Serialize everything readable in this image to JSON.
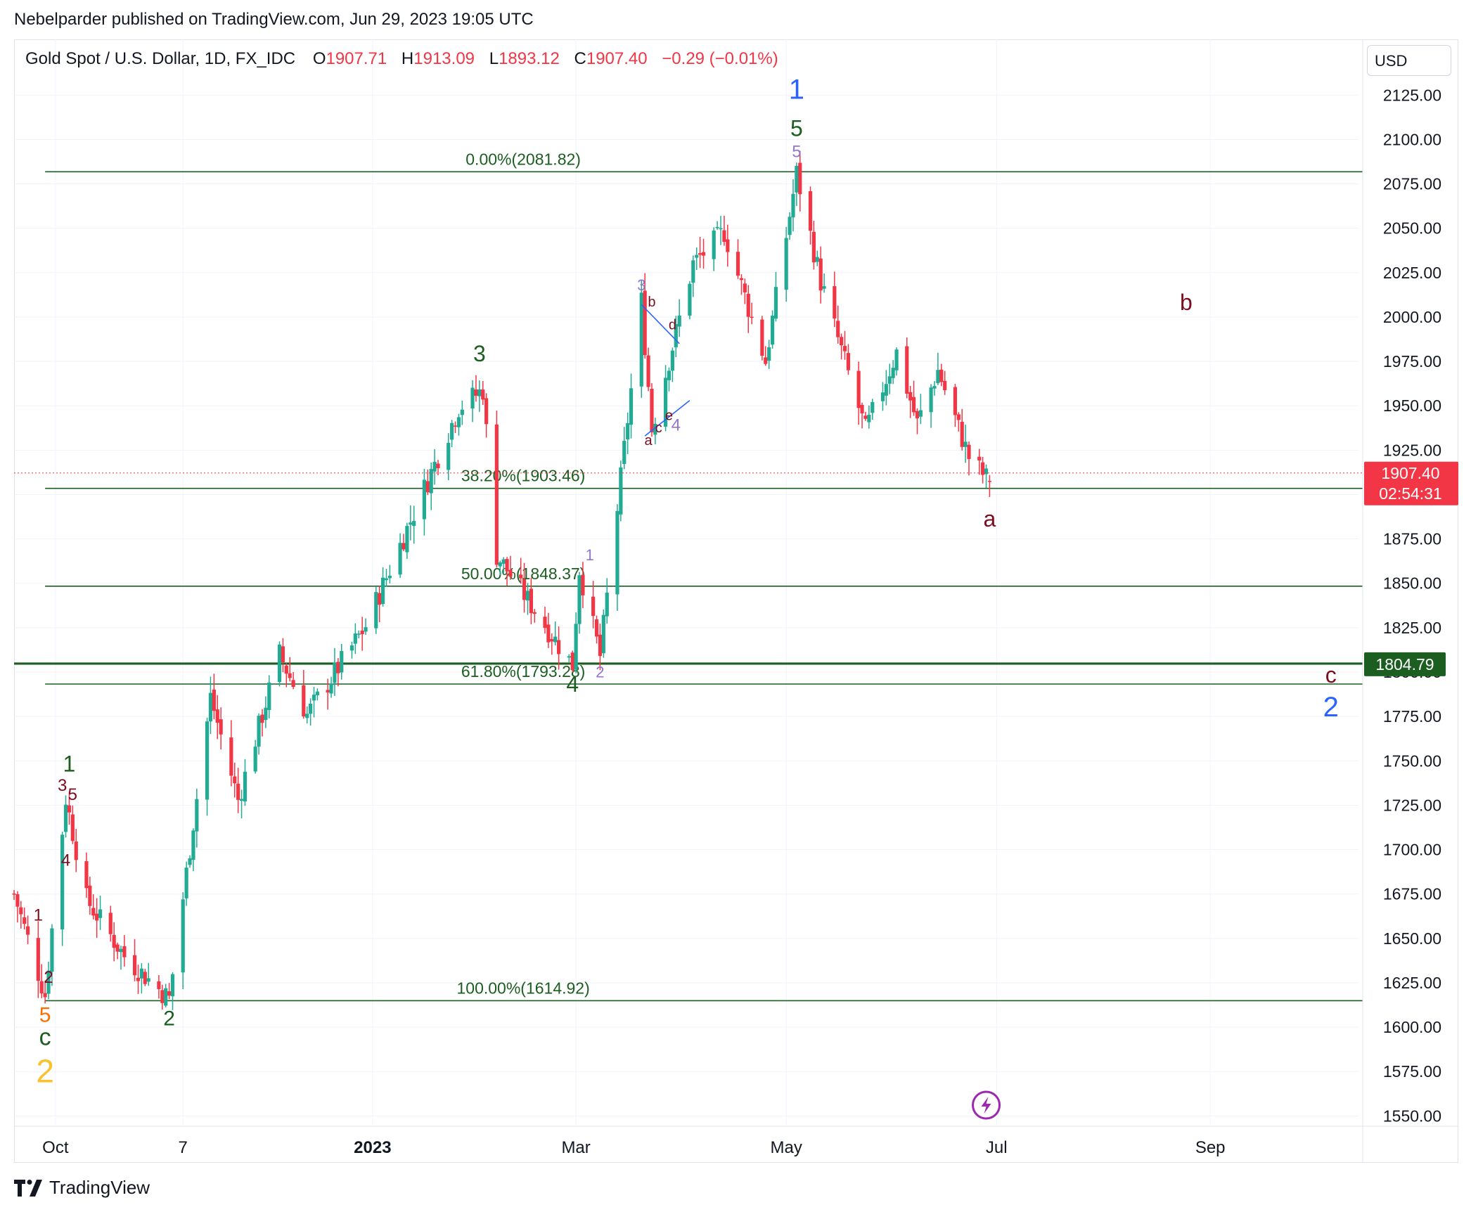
{
  "publisher_line": "Nebelparder published on TradingView.com, Jun 29, 2023 19:05 UTC",
  "header": {
    "symbol": "Gold Spot / U.S. Dollar, 1D, FX_IDC",
    "open_label": "O",
    "open": "1907.71",
    "high_label": "H",
    "high": "1913.09",
    "low_label": "L",
    "low": "1893.12",
    "close_label": "C",
    "close": "1907.40",
    "change": "−0.29 (−0.01%)"
  },
  "currency": "USD",
  "footer": {
    "brand": "TradingView"
  },
  "colors": {
    "up": "#22ab94",
    "down": "#f23645",
    "fib": "#1b5e20",
    "wave_blue": "#2962ff",
    "wave_purple": "#9575cd",
    "wave_maroon": "#7b0d1e",
    "wave_orange": "#ff6d00",
    "wave_yellow": "#fbc02d"
  },
  "chart_data": {
    "type": "candlestick",
    "title": "Gold Spot / U.S. Dollar, 1D, FX_IDC",
    "ylim": [
      1545,
      2135
    ],
    "y_ticks": [
      "1550.00",
      "1575.00",
      "1600.00",
      "1625.00",
      "1650.00",
      "1675.00",
      "1700.00",
      "1725.00",
      "1750.00",
      "1775.00",
      "1800.00",
      "1825.00",
      "1850.00",
      "1875.00",
      "1900.00",
      "1925.00",
      "1950.00",
      "1975.00",
      "2000.00",
      "2025.00",
      "2050.00",
      "2075.00",
      "2100.00",
      "2125.00"
    ],
    "x_ticks": [
      {
        "label": "Oct",
        "date": "2022-10-01",
        "bold": false
      },
      {
        "label": "7",
        "date": "2022-11-07",
        "bold": false
      },
      {
        "label": "2023",
        "date": "2023-01-01",
        "bold": true
      },
      {
        "label": "Mar",
        "date": "2023-03-01",
        "bold": false
      },
      {
        "label": "May",
        "date": "2023-05-01",
        "bold": false
      },
      {
        "label": "Jul",
        "date": "2023-07-01",
        "bold": false
      },
      {
        "label": "Sep",
        "date": "2023-09-01",
        "bold": false
      }
    ],
    "x_range": [
      "2022-09-19",
      "2023-10-14"
    ],
    "price_label": {
      "value": "1907.40",
      "countdown": "02:54:31"
    },
    "level_label": {
      "value": "1804.79"
    },
    "fib_levels": [
      {
        "label": "0.00%(2081.82)",
        "price": 2081.82
      },
      {
        "label": "38.20%(1903.46)",
        "price": 1903.46
      },
      {
        "label": "50.00%(1848.37)",
        "price": 1848.37
      },
      {
        "label": "61.80%(1793.28)",
        "price": 1793.28
      },
      {
        "label": "100.00%(1614.92)",
        "price": 1614.92
      }
    ],
    "waypoints": [
      {
        "date": "2022-09-19",
        "price": 1675
      },
      {
        "date": "2022-09-28",
        "price": 1618
      },
      {
        "date": "2022-10-04",
        "price": 1729
      },
      {
        "date": "2022-10-10",
        "price": 1672
      },
      {
        "date": "2022-10-21",
        "price": 1640
      },
      {
        "date": "2022-11-03",
        "price": 1616
      },
      {
        "date": "2022-11-15",
        "price": 1786
      },
      {
        "date": "2022-11-23",
        "price": 1728
      },
      {
        "date": "2022-12-05",
        "price": 1810
      },
      {
        "date": "2022-12-13",
        "price": 1776
      },
      {
        "date": "2022-12-30",
        "price": 1826
      },
      {
        "date": "2023-01-26",
        "price": 1949
      },
      {
        "date": "2023-02-02",
        "price": 1959
      },
      {
        "date": "2023-02-06",
        "price": 1866
      },
      {
        "date": "2023-02-28",
        "price": 1804
      },
      {
        "date": "2023-03-02",
        "price": 1858
      },
      {
        "date": "2023-03-08",
        "price": 1809
      },
      {
        "date": "2023-03-20",
        "price": 2009
      },
      {
        "date": "2023-03-23",
        "price": 1937
      },
      {
        "date": "2023-04-04",
        "price": 2030
      },
      {
        "date": "2023-04-13",
        "price": 2048
      },
      {
        "date": "2023-04-25",
        "price": 1975
      },
      {
        "date": "2023-05-04",
        "price": 2081
      },
      {
        "date": "2023-05-11",
        "price": 2020
      },
      {
        "date": "2023-05-24",
        "price": 1936
      },
      {
        "date": "2023-06-02",
        "price": 1980
      },
      {
        "date": "2023-06-08",
        "price": 1940
      },
      {
        "date": "2023-06-14",
        "price": 1970
      },
      {
        "date": "2023-06-23",
        "price": 1921
      },
      {
        "date": "2023-06-29",
        "price": 1907
      }
    ],
    "annotations": [
      {
        "text": "1",
        "date": "2023-05-04",
        "price": 2123,
        "color": "#2962ff",
        "size": 40
      },
      {
        "text": "5",
        "date": "2023-05-04",
        "price": 2102,
        "color": "#1b5e20",
        "size": 32
      },
      {
        "text": "5",
        "date": "2023-05-04",
        "price": 2090,
        "color": "#9575cd",
        "size": 24
      },
      {
        "text": "3",
        "date": "2023-02-01",
        "price": 1975,
        "color": "#1b5e20",
        "size": 32
      },
      {
        "text": "3",
        "date": "2023-03-20",
        "price": 2015,
        "color": "#9575cd",
        "size": 22
      },
      {
        "text": "b",
        "date": "2023-03-23",
        "price": 2006,
        "color": "#7b0d1e",
        "size": 20
      },
      {
        "text": "d",
        "date": "2023-03-29",
        "price": 1993,
        "color": "#7b0d1e",
        "size": 20
      },
      {
        "text": "a",
        "date": "2023-03-22",
        "price": 1928,
        "color": "#7b0d1e",
        "size": 20
      },
      {
        "text": "c",
        "date": "2023-03-25",
        "price": 1935,
        "color": "#7b0d1e",
        "size": 20
      },
      {
        "text": "e",
        "date": "2023-03-28",
        "price": 1942,
        "color": "#7b0d1e",
        "size": 20
      },
      {
        "text": "4",
        "date": "2023-03-30",
        "price": 1936,
        "color": "#9575cd",
        "size": 24
      },
      {
        "text": "1",
        "date": "2023-03-05",
        "price": 1863,
        "color": "#9575cd",
        "size": 22
      },
      {
        "text": "2",
        "date": "2023-03-08",
        "price": 1797,
        "color": "#9575cd",
        "size": 22
      },
      {
        "text": "4",
        "date": "2023-02-28",
        "price": 1789,
        "color": "#1b5e20",
        "size": 32
      },
      {
        "text": "b",
        "date": "2023-08-25",
        "price": 2004,
        "color": "#7b0d1e",
        "size": 32
      },
      {
        "text": "a",
        "date": "2023-06-29",
        "price": 1882,
        "color": "#7b0d1e",
        "size": 32
      },
      {
        "text": "c",
        "date": "2023-10-06",
        "price": 1794,
        "color": "#7b0d1e",
        "size": 32
      },
      {
        "text": "2",
        "date": "2023-10-06",
        "price": 1775,
        "color": "#2962ff",
        "size": 40
      },
      {
        "text": "1",
        "date": "2022-10-05",
        "price": 1744,
        "color": "#1b5e20",
        "size": 32
      },
      {
        "text": "3",
        "date": "2022-10-03",
        "price": 1733,
        "color": "#7b0d1e",
        "size": 24
      },
      {
        "text": "5",
        "date": "2022-10-06",
        "price": 1728,
        "color": "#7b0d1e",
        "size": 24
      },
      {
        "text": "4",
        "date": "2022-10-04",
        "price": 1691,
        "color": "#7b0d1e",
        "size": 24
      },
      {
        "text": "1",
        "date": "2022-09-26",
        "price": 1660,
        "color": "#7b0d1e",
        "size": 24
      },
      {
        "text": "2",
        "date": "2022-09-29",
        "price": 1625,
        "color": "#7b0d1e",
        "size": 24
      },
      {
        "text": "5",
        "date": "2022-09-28",
        "price": 1603,
        "color": "#ff6d00",
        "size": 30
      },
      {
        "text": "c",
        "date": "2022-09-28",
        "price": 1590,
        "color": "#1b5e20",
        "size": 34
      },
      {
        "text": "2",
        "date": "2022-09-28",
        "price": 1569,
        "color": "#fbc02d",
        "size": 46
      },
      {
        "text": "2",
        "date": "2022-11-03",
        "price": 1601,
        "color": "#1b5e20",
        "size": 30
      }
    ],
    "trendlines": [
      {
        "from": {
          "date": "2023-03-20",
          "price": 2007
        },
        "to": {
          "date": "2023-03-31",
          "price": 1985
        },
        "color": "#2962ff"
      },
      {
        "from": {
          "date": "2023-03-21",
          "price": 1933
        },
        "to": {
          "date": "2023-04-03",
          "price": 1953
        },
        "color": "#2962ff"
      }
    ]
  }
}
